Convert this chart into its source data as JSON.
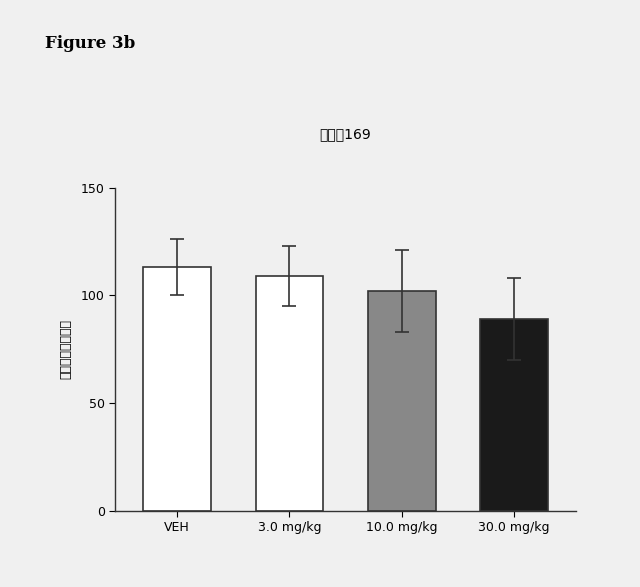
{
  "title": "実施例169",
  "figure_label": "Figure 3b",
  "categories": [
    "VEH",
    "3.0 mg/kg",
    "10.0 mg/kg",
    "30.0 mg/kg"
  ],
  "values": [
    113,
    109,
    102,
    89
  ],
  "errors": [
    13,
    14,
    19,
    19
  ],
  "bar_colors": [
    "white",
    "white",
    "#888888",
    "#1a1a1a"
  ],
  "bar_edgecolors": [
    "#333333",
    "#333333",
    "#333333",
    "#333333"
  ],
  "ylabel": "合計活性カウント",
  "ylim": [
    0,
    150
  ],
  "yticks": [
    0,
    50,
    100,
    150
  ],
  "background_color": "#f0f0f0",
  "bar_width": 0.6
}
